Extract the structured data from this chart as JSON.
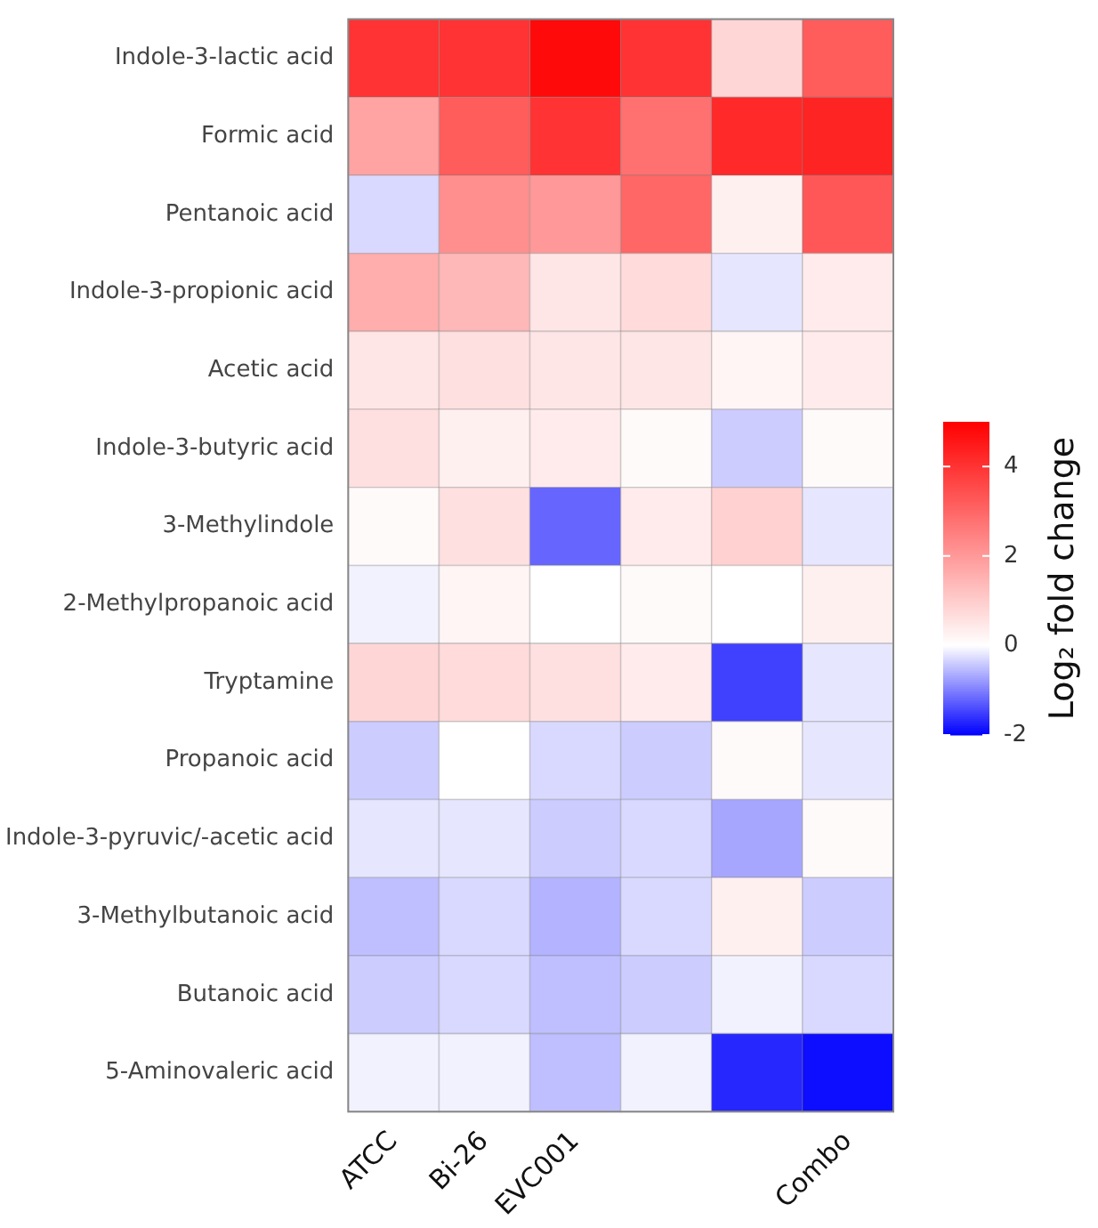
{
  "chart_data": {
    "type": "heatmap",
    "clabel": "Log₂ fold change",
    "categories": [
      "ATCC",
      "Bi-26",
      "EVC001",
      null,
      null,
      "Combo"
    ],
    "y_categories": [
      "Indole-3-lactic acid",
      "Formic acid",
      "Pentanoic acid",
      "Indole-3-propionic acid",
      "Acetic acid",
      "Indole-3-butyric acid",
      "3-Methylindole",
      "2-Methylpropanoic acid",
      "Tryptamine",
      "Propanoic acid",
      "Indole-3-pyruvic/-acetic acid",
      "3-Methylbutanoic acid",
      "Butanoic acid",
      "5-Aminovaleric acid"
    ],
    "cells": [
      [
        4.0,
        4.0,
        4.8,
        4.0,
        0.8,
        3.2
      ],
      [
        1.8,
        3.2,
        4.0,
        2.8,
        4.2,
        4.3
      ],
      [
        -0.3,
        2.2,
        2.0,
        3.0,
        0.3,
        3.3
      ],
      [
        1.6,
        1.4,
        0.5,
        0.7,
        -0.2,
        0.4
      ],
      [
        0.5,
        0.6,
        0.5,
        0.5,
        0.2,
        0.4
      ],
      [
        0.6,
        0.3,
        0.4,
        0.1,
        -0.4,
        0.1
      ],
      [
        0.1,
        0.6,
        -1.2,
        0.4,
        0.9,
        -0.2
      ],
      [
        -0.1,
        0.2,
        0.0,
        0.1,
        0.0,
        0.3
      ],
      [
        0.8,
        0.7,
        0.6,
        0.4,
        -1.5,
        -0.2
      ],
      [
        -0.4,
        0.0,
        -0.3,
        -0.4,
        0.1,
        -0.2
      ],
      [
        -0.2,
        -0.2,
        -0.4,
        -0.3,
        -0.7,
        0.1
      ],
      [
        -0.5,
        -0.3,
        -0.6,
        -0.3,
        0.3,
        -0.4
      ],
      [
        -0.4,
        -0.3,
        -0.5,
        -0.4,
        -0.1,
        -0.3
      ],
      [
        -0.1,
        -0.1,
        -0.5,
        -0.1,
        -1.7,
        -1.9
      ]
    ],
    "clim": [
      -2,
      5
    ],
    "cticks": [
      -2,
      0,
      2,
      4
    ]
  }
}
